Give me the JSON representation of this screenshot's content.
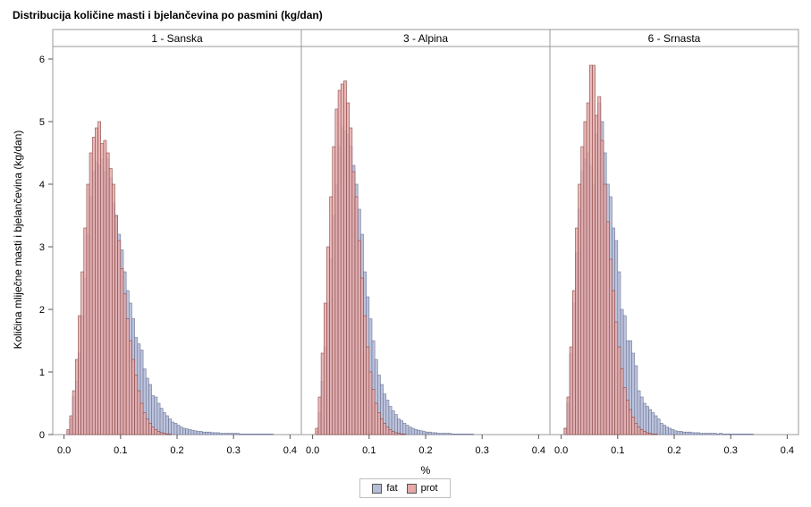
{
  "chart_data": {
    "type": "bar",
    "title": "Distribucija količine masti i bjelančevina po pasmini (kg/dan)",
    "xlabel": "%",
    "ylabel": "Količina mliječne masti i bjelančevina (kg/dan)",
    "xlim": [
      -0.02,
      0.42
    ],
    "ylim": [
      0,
      6.2
    ],
    "xticks": [
      "0.0",
      "0.1",
      "0.2",
      "0.3",
      "0.4"
    ],
    "yticks": [
      "0",
      "1",
      "2",
      "3",
      "4",
      "5",
      "6"
    ],
    "bin_width": 0.005,
    "legend_position": "bottom-center",
    "legend": [
      {
        "name": "fat",
        "color": "#b5bdd8"
      },
      {
        "name": "prot",
        "color": "#e5aaa8"
      }
    ],
    "panels": [
      {
        "name": "1 - Sanska",
        "series": [
          {
            "name": "fat",
            "bin_start": 0.0,
            "values": [
              0,
              0.05,
              0.25,
              0.6,
              0.85,
              1.3,
              1.9,
              2.5,
              3.2,
              3.8,
              4.2,
              4.35,
              4.3,
              4.4,
              4.2,
              4.4,
              4.1,
              3.7,
              3.5,
              3.2,
              2.95,
              2.6,
              2.3,
              2.1,
              1.85,
              1.55,
              1.45,
              1.35,
              1.05,
              0.9,
              0.8,
              0.62,
              0.6,
              0.5,
              0.42,
              0.35,
              0.3,
              0.25,
              0.2,
              0.18,
              0.15,
              0.12,
              0.1,
              0.09,
              0.08,
              0.07,
              0.06,
              0.05,
              0.05,
              0.04,
              0.04,
              0.04,
              0.03,
              0.03,
              0.03,
              0.02,
              0.02,
              0.02,
              0.02,
              0.02,
              0.02,
              0.02,
              0.01,
              0.01,
              0.01,
              0.01,
              0.01,
              0.01,
              0.01,
              0.01,
              0.01,
              0.01,
              0.01,
              0.01,
              0.0,
              0.0,
              0.0,
              0.0,
              0.0,
              0.0
            ]
          },
          {
            "name": "prot",
            "bin_start": 0.0,
            "values": [
              0,
              0.08,
              0.3,
              0.7,
              1.2,
              1.9,
              2.6,
              3.3,
              4.0,
              4.5,
              4.75,
              4.9,
              5.0,
              4.65,
              4.7,
              4.5,
              4.25,
              4.0,
              3.5,
              3.1,
              2.65,
              2.25,
              1.85,
              1.5,
              1.2,
              0.95,
              0.7,
              0.5,
              0.35,
              0.25,
              0.18,
              0.12,
              0.08,
              0.05,
              0.03,
              0.02,
              0.01,
              0.01,
              0.0,
              0.0,
              0.0,
              0.0,
              0.0,
              0.0,
              0.0,
              0.0,
              0.0,
              0.0,
              0.0,
              0.0,
              0.0,
              0.0,
              0.0,
              0.0,
              0.0,
              0.0,
              0.0,
              0.0,
              0.0,
              0.0,
              0.0,
              0.0,
              0.0,
              0.0,
              0.0,
              0.0,
              0.0,
              0.0,
              0.0,
              0.0,
              0.0,
              0.0,
              0.0,
              0.0,
              0.0,
              0.0,
              0.0,
              0.0,
              0.0,
              0.0
            ]
          }
        ]
      },
      {
        "name": "3 - Alpina",
        "series": [
          {
            "name": "fat",
            "bin_start": 0.0,
            "values": [
              0,
              0.05,
              0.35,
              0.85,
              1.4,
              2.1,
              2.8,
              3.5,
              4.0,
              4.6,
              4.9,
              4.85,
              4.8,
              4.6,
              4.3,
              4.0,
              3.6,
              3.2,
              2.6,
              2.2,
              1.85,
              1.5,
              1.2,
              0.95,
              0.8,
              0.65,
              0.55,
              0.45,
              0.38,
              0.32,
              0.25,
              0.22,
              0.18,
              0.15,
              0.12,
              0.1,
              0.08,
              0.07,
              0.06,
              0.05,
              0.04,
              0.04,
              0.03,
              0.03,
              0.02,
              0.02,
              0.02,
              0.02,
              0.02,
              0.01,
              0.01,
              0.01,
              0.01,
              0.01,
              0.01,
              0.01,
              0.01,
              0.0,
              0.0,
              0.0,
              0.0,
              0.0,
              0.0,
              0.0,
              0.0,
              0.0,
              0.0,
              0.0,
              0.0,
              0.0,
              0.0,
              0.0,
              0.0,
              0.0,
              0.0,
              0.0,
              0.0,
              0.0,
              0.0,
              0.0
            ]
          },
          {
            "name": "prot",
            "bin_start": 0.0,
            "values": [
              0,
              0.1,
              0.6,
              1.3,
              2.1,
              3.0,
              3.8,
              4.6,
              5.2,
              5.5,
              5.6,
              5.65,
              5.3,
              4.9,
              4.2,
              3.8,
              3.1,
              2.5,
              1.9,
              1.4,
              1.0,
              0.72,
              0.5,
              0.35,
              0.25,
              0.18,
              0.12,
              0.08,
              0.05,
              0.03,
              0.02,
              0.01,
              0.01,
              0.0,
              0.0,
              0.0,
              0.0,
              0.0,
              0.0,
              0.0,
              0.0,
              0.0,
              0.0,
              0.0,
              0.0,
              0.0,
              0.0,
              0.0,
              0.0,
              0.0,
              0.0,
              0.0,
              0.0,
              0.0,
              0.0,
              0.0,
              0.0,
              0.0,
              0.0,
              0.0,
              0.0,
              0.0,
              0.0,
              0.0,
              0.0,
              0.0,
              0.0,
              0.0,
              0.0,
              0.0,
              0.0,
              0.0,
              0.0,
              0.0,
              0.0,
              0.0,
              0.0,
              0.0,
              0.0,
              0.0
            ]
          }
        ]
      },
      {
        "name": "6 - Srnasta",
        "series": [
          {
            "name": "fat",
            "bin_start": 0.0,
            "values": [
              0,
              0.1,
              0.5,
              1.3,
              2.1,
              2.9,
              3.6,
              4.2,
              4.4,
              4.5,
              4.3,
              4.0,
              4.8,
              5.3,
              5.0,
              4.5,
              4.0,
              3.8,
              3.3,
              3.1,
              2.6,
              2.0,
              1.9,
              1.5,
              1.5,
              1.3,
              1.1,
              0.7,
              0.6,
              0.5,
              0.45,
              0.4,
              0.35,
              0.3,
              0.25,
              0.18,
              0.15,
              0.12,
              0.1,
              0.08,
              0.06,
              0.05,
              0.05,
              0.04,
              0.04,
              0.04,
              0.03,
              0.03,
              0.03,
              0.02,
              0.02,
              0.02,
              0.02,
              0.02,
              0.02,
              0.01,
              0.02,
              0.01,
              0.01,
              0.01,
              0.01,
              0.01,
              0.01,
              0.01,
              0.01,
              0.01,
              0.01,
              0.01,
              0.0,
              0.0,
              0.0,
              0.0,
              0.0,
              0.0,
              0.0,
              0.0,
              0.0,
              0.0,
              0.0,
              0.0
            ]
          },
          {
            "name": "prot",
            "bin_start": 0.0,
            "values": [
              0,
              0.1,
              0.6,
              1.4,
              2.3,
              3.3,
              4.0,
              4.6,
              5.0,
              5.3,
              5.9,
              5.9,
              5.1,
              5.4,
              4.7,
              4.0,
              3.4,
              2.8,
              2.3,
              1.8,
              1.4,
              1.05,
              0.75,
              0.55,
              0.4,
              0.28,
              0.18,
              0.12,
              0.08,
              0.05,
              0.03,
              0.02,
              0.01,
              0.01,
              0.0,
              0.0,
              0.0,
              0.0,
              0.0,
              0.0,
              0.0,
              0.0,
              0.0,
              0.0,
              0.0,
              0.0,
              0.0,
              0.0,
              0.0,
              0.0,
              0.0,
              0.0,
              0.0,
              0.0,
              0.0,
              0.0,
              0.0,
              0.0,
              0.0,
              0.0,
              0.0,
              0.0,
              0.0,
              0.0,
              0.0,
              0.0,
              0.0,
              0.0,
              0.0,
              0.0,
              0.0,
              0.0,
              0.0,
              0.0,
              0.0,
              0.0,
              0.0,
              0.0,
              0.0,
              0.0
            ]
          }
        ]
      }
    ]
  }
}
